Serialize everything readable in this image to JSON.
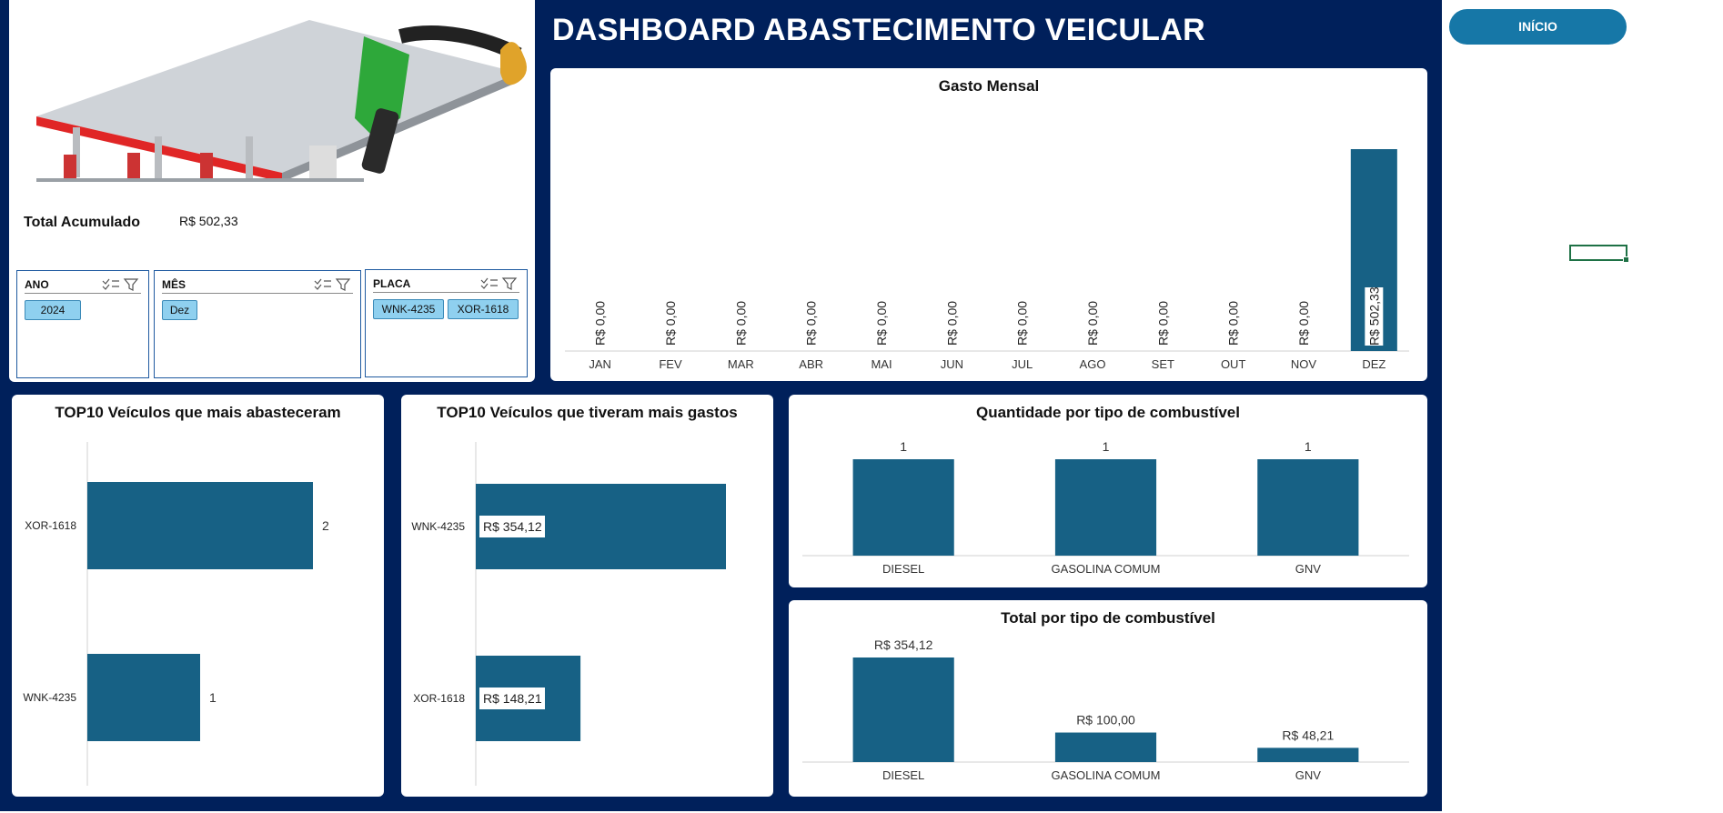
{
  "dashboard": {
    "title": "DASHBOARD ABASTECIMENTO VEICULAR",
    "total_label": "Total Acumulado",
    "total_value": "R$ 502,33",
    "home_button": "INÍCIO"
  },
  "slicers": {
    "ano": {
      "label": "ANO",
      "selected": [
        "2024"
      ]
    },
    "mes": {
      "label": "MÊS",
      "selected": [
        "Dez"
      ]
    },
    "placa": {
      "label": "PLACA",
      "selected": [
        "WNK-4235",
        "XOR-1618"
      ]
    }
  },
  "colors": {
    "background": "#00205b",
    "bar": "#176185",
    "button": "#1677a7"
  },
  "chart_data": [
    {
      "id": "gasto_mensal",
      "type": "bar",
      "title": "Gasto Mensal",
      "categories": [
        "JAN",
        "FEV",
        "MAR",
        "ABR",
        "MAI",
        "JUN",
        "JUL",
        "AGO",
        "SET",
        "OUT",
        "NOV",
        "DEZ"
      ],
      "values": [
        0,
        0,
        0,
        0,
        0,
        0,
        0,
        0,
        0,
        0,
        0,
        502.33
      ],
      "labels": [
        "R$ 0,00",
        "R$ 0,00",
        "R$ 0,00",
        "R$ 0,00",
        "R$ 0,00",
        "R$ 0,00",
        "R$ 0,00",
        "R$ 0,00",
        "R$ 0,00",
        "R$ 0,00",
        "R$ 0,00",
        "R$ 502,33"
      ],
      "ylim": [
        0,
        502.33
      ]
    },
    {
      "id": "top10_abastecimentos",
      "type": "bar",
      "orientation": "horizontal",
      "title": "TOP10 Veículos que mais abasteceram",
      "categories": [
        "XOR-1618",
        "WNK-4235"
      ],
      "values": [
        2,
        1
      ],
      "labels": [
        "2",
        "1"
      ],
      "xlim": [
        0,
        2
      ]
    },
    {
      "id": "top10_gastos",
      "type": "bar",
      "orientation": "horizontal",
      "title": "TOP10 Veículos que tiveram mais gastos",
      "categories": [
        "WNK-4235",
        "XOR-1618"
      ],
      "values": [
        354.12,
        148.21
      ],
      "labels": [
        "R$ 354,12",
        "R$ 148,21"
      ],
      "xlim": [
        0,
        354.12
      ]
    },
    {
      "id": "qtd_combustivel",
      "type": "bar",
      "title": "Quantidade por tipo de combustível",
      "categories": [
        "DIESEL",
        "GASOLINA COMUM",
        "GNV"
      ],
      "values": [
        1,
        1,
        1
      ],
      "labels": [
        "1",
        "1",
        "1"
      ],
      "ylim": [
        0,
        1
      ]
    },
    {
      "id": "total_combustivel",
      "type": "bar",
      "title": "Total por tipo de combustível",
      "categories": [
        "DIESEL",
        "GASOLINA COMUM",
        "GNV"
      ],
      "values": [
        354.12,
        100.0,
        48.21
      ],
      "labels": [
        "R$ 354,12",
        "R$ 100,00",
        "R$ 48,21"
      ],
      "ylim": [
        0,
        354.12
      ]
    }
  ]
}
